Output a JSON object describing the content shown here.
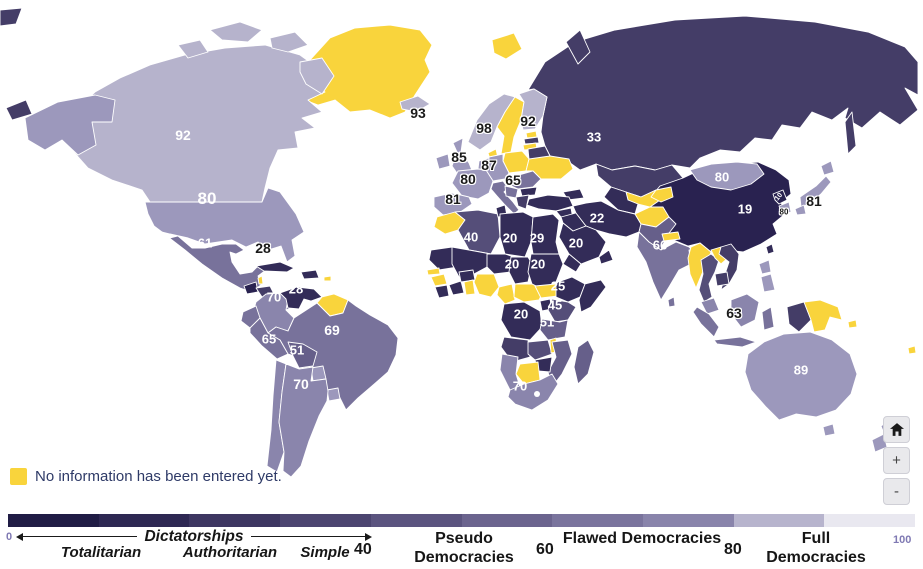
{
  "map": {
    "no_data_note": "No information has been entered yet.",
    "palette": {
      "no_data": "#F9D43C",
      "bins": [
        "#1f1b43",
        "#292250",
        "#332c58",
        "#443d67",
        "#554e79",
        "#665f8a",
        "#78729b",
        "#8a85ac",
        "#9c98bc",
        "#b6b3cc"
      ]
    },
    "countries": [
      {
        "name": "Canada",
        "value": 92,
        "label_color": "#ffffff"
      },
      {
        "name": "United States",
        "value": 80,
        "label_color": "#ffffff"
      },
      {
        "name": "Mexico",
        "value": 61,
        "label_color": "#ffffff"
      },
      {
        "name": "Cuba",
        "value": 28,
        "label_color": "#1a1a1a"
      },
      {
        "name": "Venezuela",
        "value": 28,
        "label_color": "#ffffff"
      },
      {
        "name": "Colombia",
        "value": 70,
        "label_color": "#ffffff"
      },
      {
        "name": "Peru",
        "value": 65,
        "label_color": "#ffffff"
      },
      {
        "name": "Bolivia",
        "value": 51,
        "label_color": "#ffffff"
      },
      {
        "name": "Brazil",
        "value": 69,
        "label_color": "#ffffff"
      },
      {
        "name": "Argentina",
        "value": 70,
        "label_color": "#ffffff"
      },
      {
        "name": "Iceland",
        "value": 93,
        "label_color": "#1a1a1a"
      },
      {
        "name": "Norway",
        "value": 98,
        "label_color": "#1a1a1a"
      },
      {
        "name": "Finland",
        "value": 92,
        "label_color": "#1a1a1a"
      },
      {
        "name": "United Kingdom",
        "value": 85,
        "label_color": "#1a1a1a"
      },
      {
        "name": "Germany",
        "value": 87,
        "label_color": "#1a1a1a"
      },
      {
        "name": "France",
        "value": 80,
        "label_color": "#1a1a1a"
      },
      {
        "name": "Romania",
        "value": 65,
        "label_color": "#1a1a1a"
      },
      {
        "name": "Spain",
        "value": 81,
        "label_color": "#1a1a1a"
      },
      {
        "name": "Russia",
        "value": 33,
        "label_color": "#ffffff"
      },
      {
        "name": "Algeria",
        "value": 40,
        "label_color": "#ffffff"
      },
      {
        "name": "Libya",
        "value": 20,
        "label_color": "#ffffff"
      },
      {
        "name": "Egypt",
        "value": 29,
        "label_color": "#ffffff"
      },
      {
        "name": "Saudi Arabia",
        "value": 20,
        "label_color": "#ffffff"
      },
      {
        "name": "Chad",
        "value": 20,
        "label_color": "#ffffff"
      },
      {
        "name": "Sudan",
        "value": 20,
        "label_color": "#ffffff"
      },
      {
        "name": "Ethiopia",
        "value": 25,
        "label_color": "#ffffff"
      },
      {
        "name": "Kenya",
        "value": 45,
        "label_color": "#ffffff"
      },
      {
        "name": "DR Congo",
        "value": 20,
        "label_color": "#ffffff"
      },
      {
        "name": "Tanzania",
        "value": 51,
        "label_color": "#ffffff"
      },
      {
        "name": "South Africa",
        "value": 70,
        "label_color": "#ffffff"
      },
      {
        "name": "Iran",
        "value": 22,
        "label_color": "#ffffff"
      },
      {
        "name": "India",
        "value": 66,
        "label_color": "#ffffff"
      },
      {
        "name": "Mongolia",
        "value": 80,
        "label_color": "#ffffff"
      },
      {
        "name": "China",
        "value": 19,
        "label_color": "#ffffff"
      },
      {
        "name": "North Korea",
        "value": 10,
        "label_color": "#ffffff"
      },
      {
        "name": "South Korea",
        "value": 80,
        "label_color": "#1a1a1a"
      },
      {
        "name": "Japan",
        "value": 81,
        "label_color": "#1a1a1a"
      },
      {
        "name": "Indonesia",
        "value": 63,
        "label_color": "#1a1a1a"
      },
      {
        "name": "Australia",
        "value": 89,
        "label_color": "#ffffff"
      }
    ]
  },
  "controls": {
    "zoom_in": "+",
    "zoom_out": "-"
  },
  "legend": {
    "segments": [
      "#201c45",
      "#2e2853",
      "#3d3661",
      "#4c4570",
      "#5b547f",
      "#6b648e",
      "#7a749d",
      "#8984ab",
      "#b7b4cd",
      "#e9e8f0"
    ],
    "ticks": {
      "start": "0",
      "dict_end": "40",
      "pseudo_end": "60",
      "flawed_end": "80",
      "end": "100"
    },
    "groups": {
      "dictatorships": {
        "label": "Dictatorships",
        "sub": [
          "Totalitarian",
          "Authoritarian",
          "Simple"
        ]
      },
      "pseudo": {
        "line1": "Pseudo",
        "line2": "Democracies"
      },
      "flawed": "Flawed Democracies",
      "full": "Full Democracies"
    }
  }
}
